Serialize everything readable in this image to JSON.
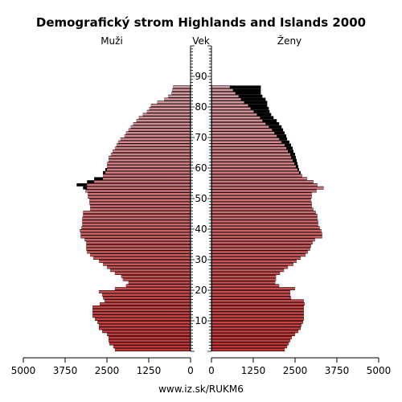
{
  "chart_data": {
    "type": "bar",
    "title": "Demografický strom Highlands and Islands 2000",
    "left_label": "Muži",
    "center_label": "Vek",
    "right_label": "Ženy",
    "source": "www.iz.sk/RUKM6",
    "x_ticks_left": [
      "5000",
      "3750",
      "2500",
      "1250",
      "0"
    ],
    "x_ticks_right": [
      "0",
      "1250",
      "2500",
      "3750",
      "5000"
    ],
    "age_ticks": [
      "10",
      "20",
      "30",
      "40",
      "50",
      "60",
      "70",
      "80",
      "90"
    ],
    "xlim": [
      0,
      5000
    ],
    "age_range": [
      0,
      99
    ],
    "colors": {
      "base": "#000000",
      "male_young": "#cc3333",
      "male_old": "#d8a0a8",
      "female_young": "#cc3333",
      "female_old": "#d8a0a8",
      "outline": "#000000"
    },
    "series": [
      {
        "name": "Muži",
        "values": [
          2262,
          2310,
          2429,
          2453,
          2453,
          2500,
          2643,
          2738,
          2738,
          2786,
          2857,
          2929,
          2929,
          2929,
          2929,
          2714,
          2571,
          2619,
          2643,
          2738,
          2262,
          1929,
          1857,
          2024,
          2071,
          2262,
          2405,
          2500,
          2619,
          2738,
          2905,
          3000,
          3095,
          3119,
          3119,
          3119,
          3167,
          3286,
          3286,
          3310,
          3262,
          3238,
          3238,
          3238,
          3214,
          3214,
          3000,
          3000,
          3024,
          3024,
          3071,
          3071,
          3143,
          3095,
          3095,
          2881,
          2619,
          2619,
          2548,
          2500,
          2500,
          2500,
          2452,
          2452,
          2381,
          2333,
          2262,
          2214,
          2167,
          2095,
          1976,
          1929,
          1857,
          1786,
          1714,
          1619,
          1548,
          1429,
          1310,
          1238,
          1190,
          1000,
          786,
          667,
          571,
          548,
          524,
          0,
          0,
          0,
          0,
          0,
          0,
          0,
          0,
          0,
          0,
          0,
          0,
          0
        ],
        "base": [
          2262,
          2310,
          2429,
          2453,
          2453,
          2500,
          2643,
          2738,
          2738,
          2786,
          2857,
          2929,
          2929,
          2929,
          2929,
          2714,
          2571,
          2619,
          2643,
          2738,
          2262,
          1929,
          1857,
          2024,
          2071,
          2262,
          2405,
          2500,
          2619,
          2738,
          2905,
          3000,
          3095,
          3119,
          3119,
          3119,
          3167,
          3286,
          3286,
          3310,
          3262,
          3238,
          3238,
          3238,
          3214,
          3214,
          3000,
          3000,
          3024,
          3024,
          3071,
          3071,
          3143,
          3214,
          3405,
          3095,
          2881,
          2619,
          2619,
          2548,
          2500,
          2500,
          2452,
          2452,
          2381,
          2333,
          2262,
          2214,
          2167,
          2095,
          1976,
          1929,
          1857,
          1786,
          1714,
          1619,
          1548,
          1429,
          1310,
          1238,
          1190,
          1000,
          786,
          667,
          571,
          548,
          524,
          0,
          0,
          0,
          0,
          0,
          0,
          0,
          0,
          0,
          0,
          0,
          0,
          0
        ]
      },
      {
        "name": "Ženy",
        "values": [
          2190,
          2262,
          2310,
          2357,
          2405,
          2500,
          2595,
          2667,
          2690,
          2738,
          2762,
          2762,
          2762,
          2762,
          2762,
          2786,
          2762,
          2381,
          2357,
          2357,
          2500,
          2024,
          1905,
          1929,
          1929,
          2048,
          2167,
          2286,
          2452,
          2548,
          2667,
          2810,
          2881,
          2952,
          2976,
          3024,
          3095,
          3310,
          3310,
          3286,
          3238,
          3190,
          3190,
          3167,
          3167,
          3119,
          3048,
          3000,
          3000,
          2976,
          3000,
          3000,
          3143,
          3357,
          3167,
          3048,
          2857,
          2714,
          2619,
          2571,
          2524,
          2476,
          2429,
          2381,
          2357,
          2286,
          2238,
          2190,
          2095,
          2024,
          1952,
          1881,
          1810,
          1714,
          1619,
          1524,
          1452,
          1357,
          1262,
          1167,
          1095,
          976,
          881,
          810,
          714,
          643,
          548,
          0,
          0,
          0,
          0,
          0,
          0,
          0,
          0,
          0,
          0,
          0,
          0,
          0
        ],
        "base": [
          2190,
          2262,
          2310,
          2357,
          2405,
          2500,
          2595,
          2667,
          2690,
          2738,
          2762,
          2762,
          2762,
          2762,
          2762,
          2786,
          2762,
          2381,
          2357,
          2357,
          2500,
          2024,
          1905,
          1929,
          1929,
          2048,
          2167,
          2286,
          2452,
          2548,
          2667,
          2810,
          2881,
          2952,
          2976,
          3024,
          3095,
          3310,
          3310,
          3286,
          3238,
          3190,
          3190,
          3167,
          3167,
          3119,
          3048,
          3000,
          3000,
          2976,
          3000,
          3000,
          3143,
          3357,
          3167,
          3048,
          2857,
          2714,
          2667,
          2619,
          2595,
          2571,
          2548,
          2524,
          2500,
          2452,
          2429,
          2381,
          2333,
          2262,
          2238,
          2190,
          2143,
          2095,
          2024,
          1952,
          1857,
          1786,
          1738,
          1714,
          1667,
          1667,
          1619,
          1524,
          1476,
          1476,
          1476,
          0,
          0,
          0,
          0,
          0,
          0,
          0,
          0,
          0,
          0,
          0,
          0,
          0
        ]
      }
    ]
  }
}
